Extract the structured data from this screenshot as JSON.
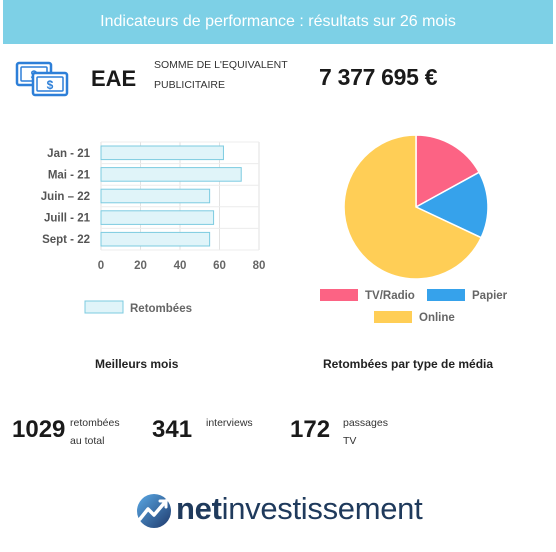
{
  "header": {
    "title": "Indicateurs de performance : résultats sur 26 mois"
  },
  "eae": {
    "code": "EAE",
    "description_line1": "SOMME DE L'EQUIVALENT",
    "description_line2": "PUBLICITAIRE",
    "value": "7 377 695 €",
    "icon": "money-icon"
  },
  "sections": {
    "best_months": "Meilleurs mois",
    "media_type": "Retombées par type de média"
  },
  "stats": [
    {
      "number": "1029",
      "label_line1": "retombées",
      "label_line2": "au total"
    },
    {
      "number": "341",
      "label_line1": "interviews",
      "label_line2": ""
    },
    {
      "number": "172",
      "label_line1": "passages",
      "label_line2": "TV"
    }
  ],
  "logo": {
    "part1": "net",
    "part2": "investissement",
    "icon": "netinvestissement-logo-icon"
  },
  "chart_data": [
    {
      "type": "bar",
      "orientation": "horizontal",
      "categories": [
        "Jan - 21",
        "Mai - 21",
        "Juin – 22",
        "Juill - 21",
        "Sept - 22"
      ],
      "series": [
        {
          "name": "Retombées",
          "values": [
            62,
            71,
            55,
            57,
            55
          ]
        }
      ],
      "xlim": [
        0,
        80
      ],
      "xticks": [
        "0",
        "20",
        "40",
        "60",
        "80"
      ],
      "grid": true,
      "legend_position": "bottom",
      "colors": {
        "fill": "#e0f4f9",
        "stroke": "#7ccbe0"
      }
    },
    {
      "type": "pie",
      "labels": [
        "TV/Radio",
        "Papier",
        "Online"
      ],
      "values": [
        17,
        15,
        68
      ],
      "colors": [
        "#fc6384",
        "#36a2eb",
        "#ffce56"
      ],
      "legend_position": "bottom"
    }
  ]
}
